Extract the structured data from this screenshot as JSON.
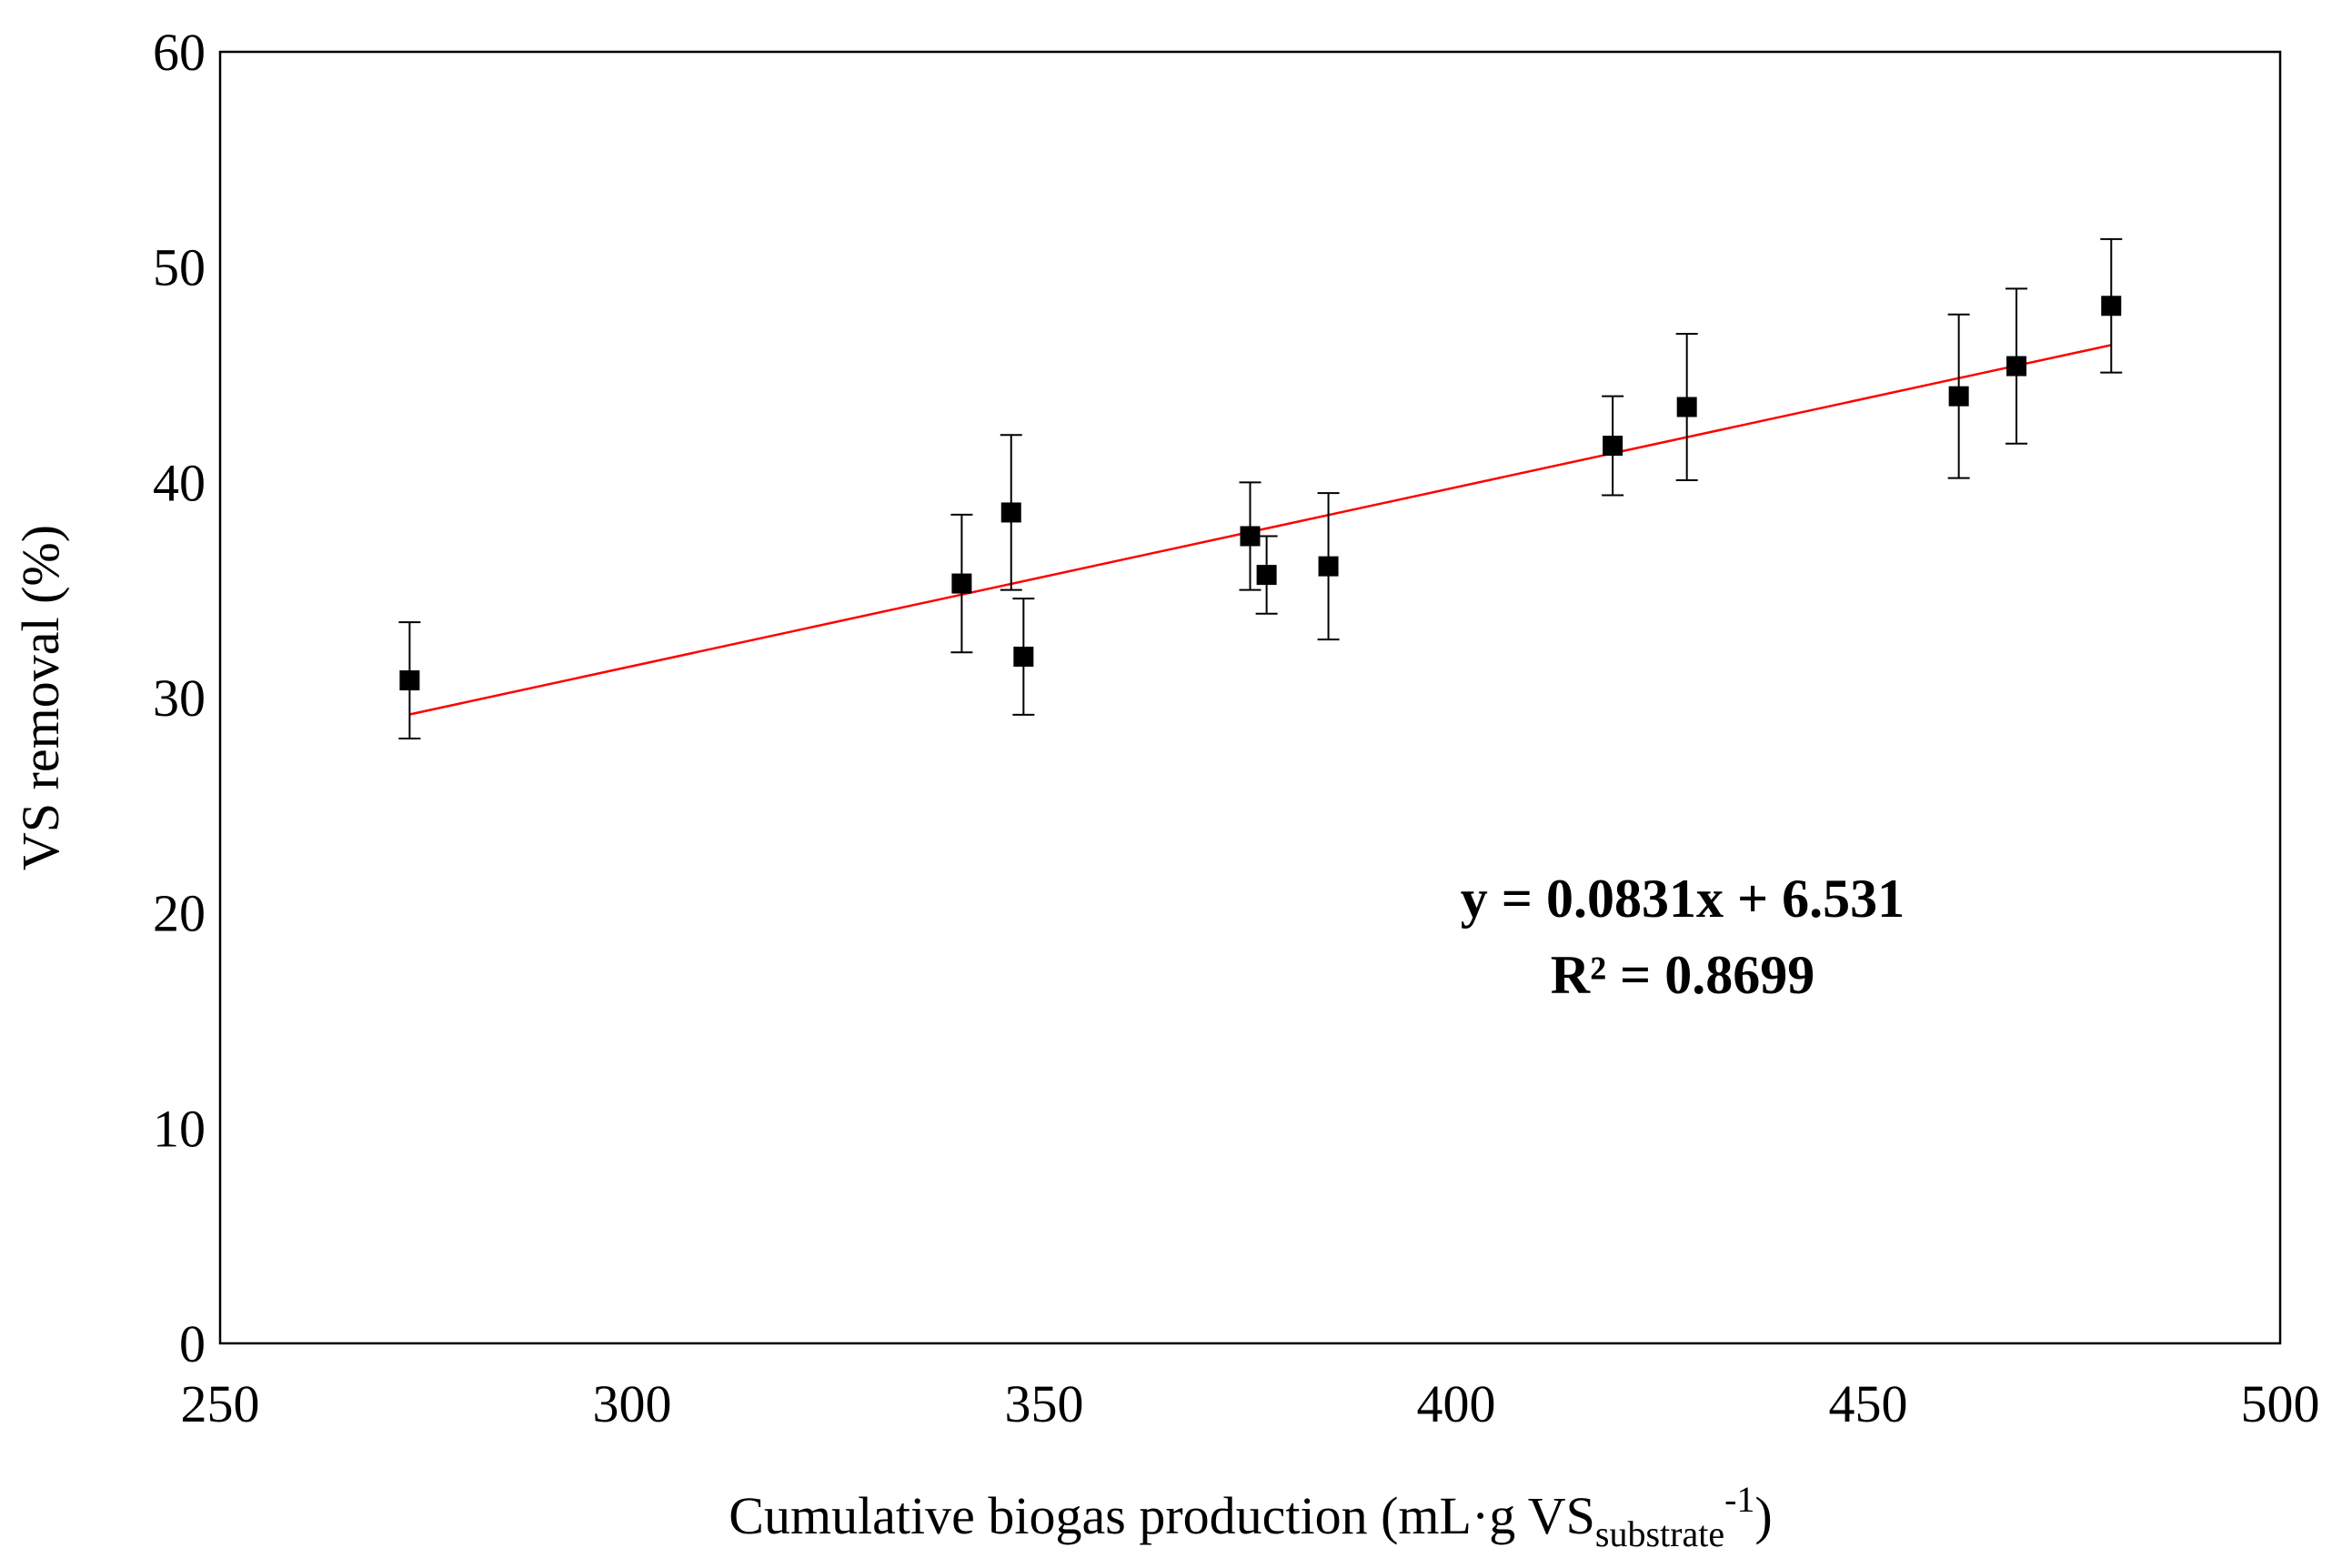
{
  "chart_data": {
    "type": "scatter",
    "title": "",
    "xlabel_main": "Cumulative biogas production (mL·g VS",
    "xlabel_sub": "substrate",
    "xlabel_sup": "-1",
    "xlabel_close": ")",
    "ylabel": "VS removal (%)",
    "xlim": [
      250,
      500
    ],
    "ylim": [
      0,
      60
    ],
    "x_ticks": [
      250,
      300,
      350,
      400,
      450,
      500
    ],
    "y_ticks": [
      0,
      10,
      20,
      30,
      40,
      50,
      60
    ],
    "grid": false,
    "series": [
      {
        "name": "VS removal",
        "marker": "square",
        "color": "#000000",
        "points": [
          {
            "x": 273,
            "y": 30.8,
            "err": 2.7
          },
          {
            "x": 340,
            "y": 35.3,
            "err": 3.2
          },
          {
            "x": 346,
            "y": 38.6,
            "err": 3.6
          },
          {
            "x": 347.5,
            "y": 31.9,
            "err": 2.7
          },
          {
            "x": 375,
            "y": 37.5,
            "err": 2.5
          },
          {
            "x": 377,
            "y": 35.7,
            "err": 1.8
          },
          {
            "x": 384.5,
            "y": 36.1,
            "err": 3.4
          },
          {
            "x": 419,
            "y": 41.7,
            "err": 2.3
          },
          {
            "x": 428,
            "y": 43.5,
            "err": 3.4
          },
          {
            "x": 461,
            "y": 44.0,
            "err": 3.8
          },
          {
            "x": 468,
            "y": 45.4,
            "err": 3.6
          },
          {
            "x": 479.5,
            "y": 48.2,
            "err": 3.1
          }
        ]
      }
    ],
    "trendline": {
      "slope": 0.0831,
      "intercept": 6.531,
      "x_range": [
        273,
        479.5
      ],
      "color": "#ff0000",
      "equation_text": "y = 0.0831x + 6.531",
      "r2_text": "R² = 0.8699"
    }
  }
}
